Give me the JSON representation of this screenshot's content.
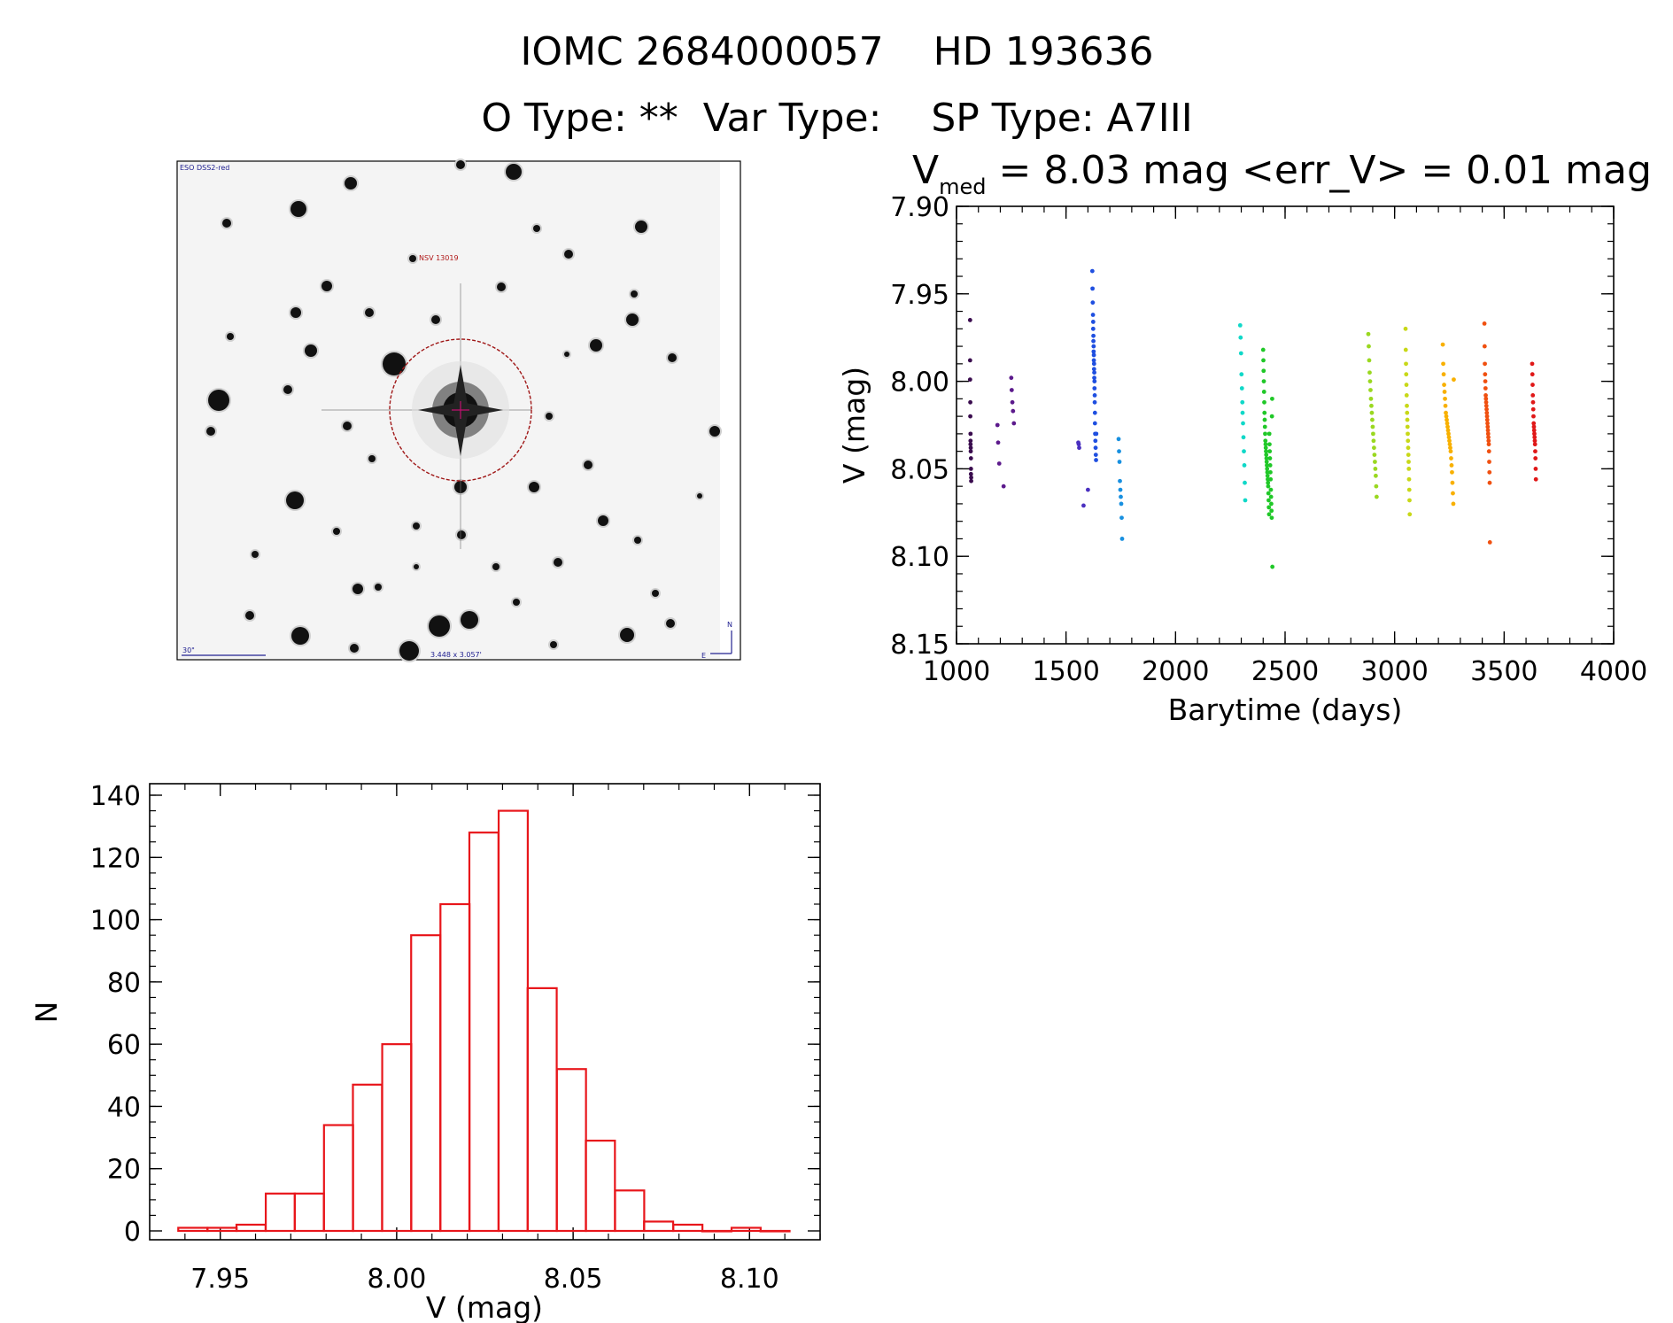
{
  "header": {
    "line1": "IOMC 2684000057    HD 193636",
    "line2": "O Type: **  Var Type:    SP Type: A7III"
  },
  "finder": {
    "survey": "ESO DSS2-red",
    "target": "NSV 13019",
    "scale_text": "30\"",
    "coords": "3.448 x 3.057'",
    "north": "N",
    "east": "E"
  },
  "lightcurve_title": {
    "v": "V",
    "sub": "med",
    "rest": " = 8.03 mag <err_V> = 0.01 mag"
  },
  "chart_data": [
    {
      "type": "scatter",
      "title": "Vmed = 8.03 mag <err_V> = 0.01 mag",
      "xlabel": "Barytime (days)",
      "ylabel": "V (mag)",
      "xlim": [
        1000,
        4000
      ],
      "ylim": [
        8.15,
        7.9
      ],
      "y_inverted": true,
      "x_ticks": [
        "1000",
        "1500",
        "2000",
        "2500",
        "3000",
        "3500",
        "4000"
      ],
      "y_ticks": [
        "7.90",
        "7.95",
        "8.00",
        "8.05",
        "8.10",
        "8.15"
      ],
      "series": [
        {
          "color": "#3a0c4e",
          "x": [
            1062,
            1062,
            1062,
            1063,
            1063,
            1064,
            1064,
            1064,
            1065,
            1065,
            1066,
            1066,
            1066,
            1067,
            1067
          ],
          "y": [
            7.965,
            7.988,
            7.999,
            8.012,
            8.02,
            8.03,
            8.034,
            8.036,
            8.038,
            8.04,
            8.044,
            8.05,
            8.053,
            8.055,
            8.057
          ]
        },
        {
          "color": "#5c1a8c",
          "x": [
            1187,
            1190,
            1195,
            1215,
            1250,
            1252,
            1255,
            1258,
            1262
          ],
          "y": [
            8.025,
            8.035,
            8.047,
            8.06,
            7.998,
            8.005,
            8.012,
            8.017,
            8.024
          ]
        },
        {
          "color": "#4a30c0",
          "x": [
            1556,
            1558,
            1560,
            1580,
            1600
          ],
          "y": [
            8.035,
            8.036,
            8.038,
            8.071,
            8.062
          ]
        },
        {
          "color": "#1f4fe0",
          "x": [
            1620,
            1621,
            1622,
            1623,
            1624,
            1624,
            1625,
            1625,
            1626,
            1626,
            1627,
            1627,
            1628,
            1628,
            1629,
            1629,
            1630,
            1630,
            1631,
            1631,
            1632,
            1632,
            1633,
            1634,
            1635,
            1636,
            1637,
            1638
          ],
          "y": [
            7.937,
            7.947,
            7.955,
            7.962,
            7.966,
            7.97,
            7.974,
            7.977,
            7.98,
            7.983,
            7.985,
            7.988,
            7.99,
            7.993,
            7.995,
            7.998,
            8.0,
            8.004,
            8.008,
            8.012,
            8.018,
            8.024,
            8.03,
            8.034,
            8.038,
            8.042,
            8.045,
            8.03
          ]
        },
        {
          "color": "#1890e0",
          "x": [
            1740,
            1742,
            1744,
            1746,
            1748,
            1750,
            1752,
            1754,
            1756
          ],
          "y": [
            8.033,
            8.04,
            8.046,
            8.057,
            8.062,
            8.066,
            8.07,
            8.078,
            8.09
          ]
        },
        {
          "color": "#10d8c8",
          "x": [
            2295,
            2297,
            2299,
            2301,
            2303,
            2305,
            2306,
            2308,
            2310,
            2312,
            2314,
            2316,
            2318
          ],
          "y": [
            7.968,
            7.975,
            7.984,
            7.996,
            8.004,
            8.012,
            8.018,
            8.024,
            8.032,
            8.04,
            8.048,
            8.058,
            8.068
          ]
        },
        {
          "color": "#20c828",
          "x": [
            2400,
            2401,
            2402,
            2403,
            2404,
            2405,
            2406,
            2407,
            2408,
            2409,
            2410,
            2411,
            2412,
            2413,
            2414,
            2415,
            2416,
            2417,
            2418,
            2419,
            2420,
            2421,
            2422,
            2423,
            2424,
            2425,
            2426,
            2427,
            2428,
            2429,
            2430,
            2431,
            2432,
            2433,
            2434,
            2435,
            2436,
            2437,
            2438,
            2439,
            2440,
            2441,
            2442
          ],
          "y": [
            7.982,
            7.988,
            7.994,
            8.0,
            8.006,
            8.012,
            8.018,
            8.022,
            8.026,
            8.03,
            8.034,
            8.036,
            8.038,
            8.04,
            8.042,
            8.044,
            8.046,
            8.048,
            8.05,
            8.052,
            8.054,
            8.056,
            8.058,
            8.06,
            8.064,
            8.068,
            8.072,
            8.076,
            8.03,
            8.036,
            8.04,
            8.044,
            8.048,
            8.052,
            8.056,
            8.062,
            8.066,
            8.07,
            8.074,
            8.078,
            8.02,
            8.01,
            8.106
          ]
        },
        {
          "color": "#9ad820",
          "x": [
            2880,
            2882,
            2884,
            2886,
            2888,
            2890,
            2892,
            2894,
            2896,
            2898,
            2900,
            2902,
            2904,
            2906,
            2908,
            2910,
            2912,
            2914,
            2916,
            2918
          ],
          "y": [
            7.973,
            7.98,
            7.988,
            7.995,
            8.0,
            8.005,
            8.01,
            8.014,
            8.018,
            8.022,
            8.026,
            8.03,
            8.034,
            8.038,
            8.042,
            8.046,
            8.05,
            8.054,
            8.06,
            8.066
          ]
        },
        {
          "color": "#c8d818",
          "x": [
            3050,
            3051,
            3052,
            3053,
            3054,
            3055,
            3056,
            3057,
            3058,
            3059,
            3060,
            3061,
            3062,
            3063,
            3064,
            3065,
            3066,
            3067,
            3068,
            3069
          ],
          "y": [
            7.97,
            7.982,
            7.99,
            7.996,
            8.002,
            8.008,
            8.014,
            8.018,
            8.022,
            8.026,
            8.03,
            8.034,
            8.038,
            8.042,
            8.046,
            8.05,
            8.056,
            8.062,
            8.068,
            8.076
          ]
        },
        {
          "color": "#f8b000",
          "x": [
            3220,
            3222,
            3224,
            3226,
            3228,
            3230,
            3232,
            3234,
            3236,
            3238,
            3240,
            3242,
            3244,
            3246,
            3248,
            3250,
            3252,
            3254,
            3256,
            3258,
            3260,
            3262,
            3264,
            3266,
            3268,
            3270
          ],
          "y": [
            7.979,
            7.99,
            7.996,
            8.002,
            8.006,
            8.01,
            8.014,
            8.018,
            8.02,
            8.022,
            8.024,
            8.026,
            8.028,
            8.03,
            8.032,
            8.034,
            8.036,
            8.038,
            8.04,
            8.044,
            8.048,
            8.052,
            8.058,
            8.064,
            8.07,
            7.999
          ]
        },
        {
          "color": "#f05010",
          "x": [
            3410,
            3411,
            3412,
            3413,
            3414,
            3415,
            3416,
            3417,
            3418,
            3419,
            3420,
            3421,
            3422,
            3423,
            3424,
            3425,
            3426,
            3427,
            3428,
            3429,
            3430,
            3431,
            3432,
            3433,
            3434,
            3435
          ],
          "y": [
            7.967,
            7.98,
            7.99,
            7.996,
            8.0,
            8.004,
            8.008,
            8.01,
            8.012,
            8.014,
            8.016,
            8.018,
            8.02,
            8.022,
            8.024,
            8.026,
            8.028,
            8.03,
            8.032,
            8.034,
            8.036,
            8.04,
            8.046,
            8.052,
            8.058,
            8.092
          ]
        },
        {
          "color": "#e01818",
          "x": [
            3628,
            3629,
            3630,
            3631,
            3632,
            3633,
            3634,
            3635,
            3636,
            3637,
            3638,
            3639,
            3640,
            3641,
            3642,
            3643,
            3644,
            3645
          ],
          "y": [
            7.99,
            7.996,
            8.002,
            8.008,
            8.012,
            8.016,
            8.02,
            8.024,
            8.026,
            8.028,
            8.03,
            8.032,
            8.034,
            8.036,
            8.04,
            8.044,
            8.05,
            8.056
          ]
        }
      ]
    },
    {
      "type": "bar",
      "xlabel": "V (mag)",
      "ylabel": "N",
      "xlim": [
        7.93,
        8.12
      ],
      "ylim": [
        0,
        140
      ],
      "x_ticks": [
        "7.95",
        "8.00",
        "8.05",
        "8.10"
      ],
      "y_ticks": [
        "0",
        "20",
        "40",
        "60",
        "80",
        "100",
        "120",
        "140"
      ],
      "bin_width": 0.00825,
      "bin_starts": [
        7.9381,
        7.9464,
        7.9546,
        7.9629,
        7.9711,
        7.9794,
        7.9876,
        7.9959,
        8.0041,
        8.0124,
        8.0206,
        8.0289,
        8.0371,
        8.0454,
        8.0536,
        8.0619,
        8.0701,
        8.0784,
        8.0866,
        8.0949,
        8.1031
      ],
      "values": [
        1,
        1,
        2,
        12,
        12,
        34,
        47,
        60,
        95,
        105,
        128,
        135,
        78,
        52,
        29,
        13,
        3,
        2,
        0,
        1,
        0
      ],
      "color": "#e8161b"
    }
  ]
}
